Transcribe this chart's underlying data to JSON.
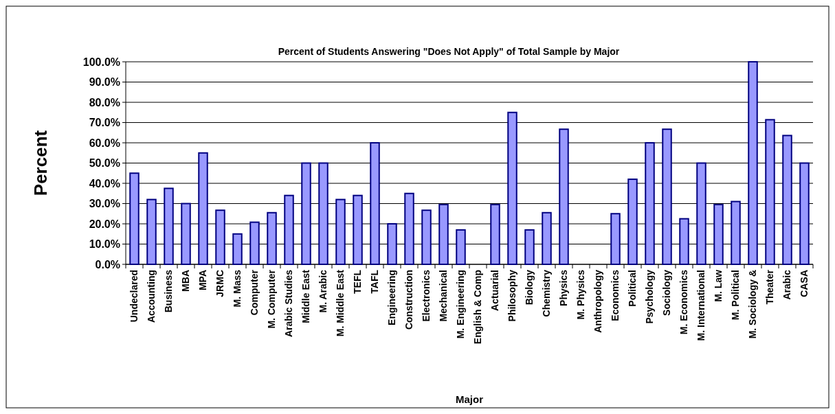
{
  "chart_data": {
    "type": "bar",
    "title": "Percent of Students Answering \"Does Not Apply\" of Total Sample by Major",
    "xlabel": "Major",
    "ylabel": "Percent",
    "categories": [
      "Undeclared",
      "Accounting",
      "Business",
      "MBA",
      "MPA",
      "JRMC",
      "M. Mass",
      "Computer",
      "M. Computer",
      "Arabic Studies",
      "Middle East",
      "M. Arabic",
      "M. Middle East",
      "TEFL",
      "TAFL",
      "Engineering",
      "Construction",
      "Electronics",
      "Mechanical",
      "M. Engineering",
      "English & Comp",
      "Actuarial",
      "Philosophy",
      "Biology",
      "Chemistry",
      "Physics",
      "M. Physics",
      "Anthropology",
      "Economics",
      "Political",
      "Psychology",
      "Sociology",
      "M. Economics",
      "M. International",
      "M. Law",
      "M. Political",
      "M. Sociology &",
      "Theater",
      "Arabic",
      "CASA"
    ],
    "values": [
      45,
      32,
      37.5,
      30,
      55,
      26.7,
      15,
      20.8,
      25.5,
      34,
      50,
      50,
      32,
      34,
      60,
      20,
      35,
      26.7,
      29.5,
      17,
      null,
      29.5,
      75,
      17,
      25.5,
      66.7,
      null,
      null,
      25,
      42,
      60,
      66.7,
      22.5,
      50,
      29.5,
      31,
      100,
      71.4,
      63.6,
      50
    ],
    "color": "#9999ff",
    "ylim": [
      0,
      100
    ],
    "yticks": [
      {
        "value": 0,
        "label": "0.0%"
      },
      {
        "value": 10,
        "label": "10.0%"
      },
      {
        "value": 20,
        "label": "20.0%"
      },
      {
        "value": 30,
        "label": "30.0%"
      },
      {
        "value": 40,
        "label": "40.0%"
      },
      {
        "value": 50,
        "label": "50.0%"
      },
      {
        "value": 60,
        "label": "60.0%"
      },
      {
        "value": 70,
        "label": "70.0%"
      },
      {
        "value": 80,
        "label": "80.0%"
      },
      {
        "value": 90,
        "label": "90.0%"
      },
      {
        "value": 100,
        "label": "100.0%"
      }
    ],
    "grid": "y"
  }
}
